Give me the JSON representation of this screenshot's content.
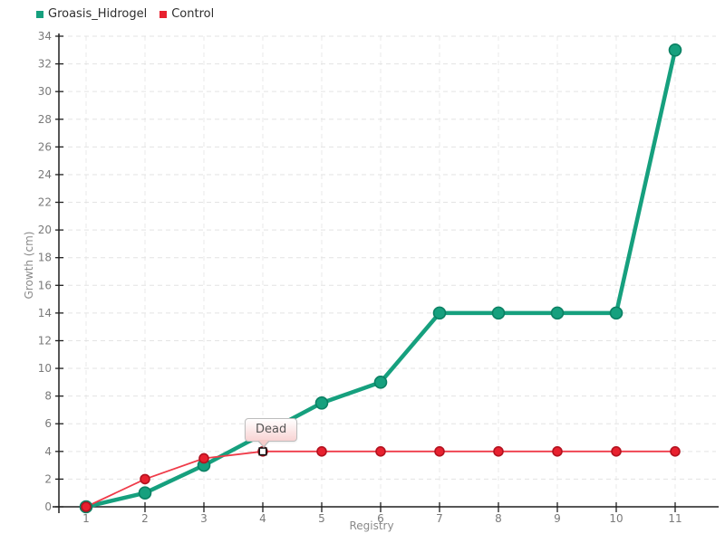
{
  "chart_data": {
    "type": "line",
    "title": "",
    "xlabel": "Registry",
    "ylabel": "Growth (cm)",
    "xlim": [
      1,
      11
    ],
    "ylim": [
      0,
      34
    ],
    "x_ticks": [
      1,
      2,
      3,
      4,
      5,
      6,
      7,
      8,
      9,
      10,
      11
    ],
    "y_ticks": [
      0,
      2,
      4,
      6,
      8,
      10,
      12,
      14,
      16,
      18,
      20,
      22,
      24,
      26,
      28,
      30,
      32,
      34
    ],
    "grid": true,
    "legend_position": "top-left",
    "series": [
      {
        "name": "Groasis_Hidrogel",
        "color": "#16a07e",
        "marker_stroke": "#0a8063",
        "line_width": 4.5,
        "marker_radius": 6.5,
        "points": [
          [
            1,
            0
          ],
          [
            2,
            1
          ],
          [
            3,
            3
          ],
          [
            5,
            7.5
          ],
          [
            6,
            9
          ],
          [
            7,
            14
          ],
          [
            8,
            14
          ],
          [
            9,
            14
          ],
          [
            10,
            14
          ],
          [
            11,
            33
          ]
        ]
      },
      {
        "name": "Control",
        "color": "#e8212f",
        "line_color": "#ef3b49",
        "marker_stroke": "#b3121f",
        "line_width": 1.8,
        "marker_radius": 5,
        "points": [
          [
            1,
            0
          ],
          [
            2,
            2
          ],
          [
            3,
            3.5
          ],
          [
            4,
            4
          ],
          [
            5,
            4
          ],
          [
            6,
            4
          ],
          [
            7,
            4
          ],
          [
            8,
            4
          ],
          [
            9,
            4
          ],
          [
            10,
            4
          ],
          [
            11,
            4
          ]
        ]
      }
    ],
    "annotation": {
      "label": "Dead",
      "series": "Control",
      "x": 4,
      "y": 4,
      "marker": "open-square"
    }
  },
  "colors": {
    "axis": "#1f1f1f",
    "grid_h": "#e3e3e3",
    "grid_v": "#e8e8e8",
    "tick_label": "#7a7a7a",
    "dead_marker_fill": "#ffffff",
    "dead_marker_stroke": "#111111"
  }
}
